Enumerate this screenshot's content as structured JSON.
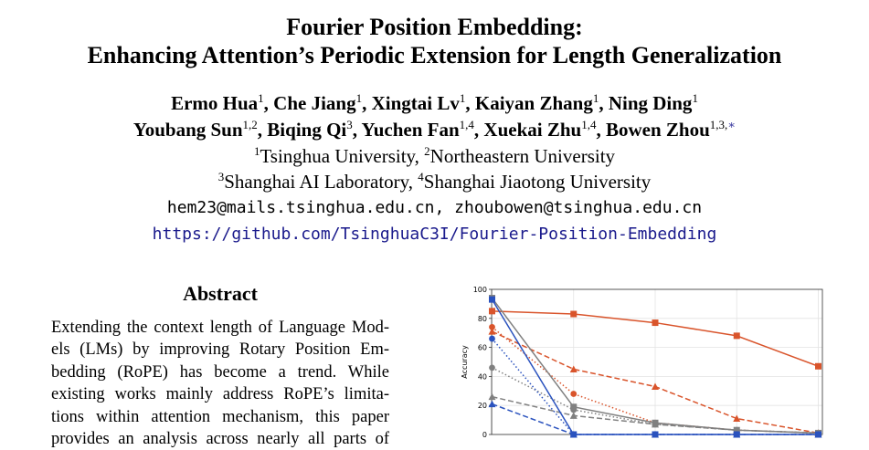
{
  "title": {
    "line1": "Fourier Position Embedding:",
    "line2": "Enhancing Attention’s Periodic Extension for Length Generalization"
  },
  "authors": [
    {
      "name": "Ermo Hua",
      "sup": "1",
      "sep": ", "
    },
    {
      "name": "Che Jiang",
      "sup": "1",
      "sep": ", "
    },
    {
      "name": "Xingtai Lv",
      "sup": "1",
      "sep": ", "
    },
    {
      "name": "Kaiyan Zhang",
      "sup": "1",
      "sep": ", "
    },
    {
      "name": "Ning Ding",
      "sup": "1",
      "sep": ""
    },
    {
      "name": "Youbang Sun",
      "sup": "1,2",
      "sep": ", "
    },
    {
      "name": "Biqing Qi",
      "sup": "3",
      "sep": ", "
    },
    {
      "name": "Yuchen Fan",
      "sup": "1,4",
      "sep": ", "
    },
    {
      "name": "Xuekai Zhu",
      "sup": "1,4",
      "sep": ", "
    },
    {
      "name": "Bowen Zhou",
      "sup": "1,3,",
      "star": "∗",
      "sep": ""
    }
  ],
  "affiliations": {
    "line1": [
      {
        "sup": "1",
        "text": "Tsinghua University, "
      },
      {
        "sup": "2",
        "text": "Northeastern University"
      }
    ],
    "line2": [
      {
        "sup": "3",
        "text": "Shanghai AI Laboratory, "
      },
      {
        "sup": "4",
        "text": "Shanghai Jiaotong University"
      }
    ]
  },
  "emails": "hem23@mails.tsinghua.edu.cn, zhoubowen@tsinghua.edu.cn",
  "github": "https://github.com/TsinghuaC3I/Fourier-Position-Embedding",
  "abstract": {
    "heading": "Abstract",
    "lines": [
      "Extending the context length of Language Mod-",
      "els (LMs) by improving Rotary Position Em-",
      "bedding (RoPE) has become a trend.  While",
      "existing works mainly address RoPE’s limita-",
      "tions within attention mechanism, this paper",
      "provides an analysis across nearly all parts of"
    ]
  },
  "chart_data": {
    "type": "line",
    "ylabel": "Accuracy",
    "ylim": [
      0,
      100
    ],
    "yticks": [
      0,
      20,
      40,
      60,
      80,
      100
    ],
    "x": [
      0,
      1,
      2,
      3,
      4
    ],
    "grid": true,
    "series": [
      {
        "values": [
          85,
          83,
          77,
          68,
          47
        ],
        "color": "#d9542b",
        "dash": "solid",
        "marker": "square"
      },
      {
        "values": [
          71,
          45,
          33,
          11,
          1
        ],
        "color": "#d9542b",
        "dash": "dashed",
        "marker": "triangle"
      },
      {
        "values": [
          74,
          28,
          8,
          3,
          1
        ],
        "color": "#d9542b",
        "dash": "dotted",
        "marker": "circle"
      },
      {
        "values": [
          94,
          19,
          8,
          3,
          1
        ],
        "color": "#808080",
        "dash": "solid",
        "marker": "square"
      },
      {
        "values": [
          26,
          13,
          7,
          3,
          1
        ],
        "color": "#808080",
        "dash": "dashed",
        "marker": "triangle"
      },
      {
        "values": [
          46,
          17,
          7,
          3,
          1
        ],
        "color": "#808080",
        "dash": "dotted",
        "marker": "circle"
      },
      {
        "values": [
          93,
          0,
          0,
          0,
          0
        ],
        "color": "#2a52be",
        "dash": "solid",
        "marker": "square"
      },
      {
        "values": [
          21,
          0,
          0,
          0,
          0
        ],
        "color": "#2a52be",
        "dash": "dashed",
        "marker": "triangle"
      },
      {
        "values": [
          66,
          0,
          0,
          0,
          0
        ],
        "color": "#2a52be",
        "dash": "dotted",
        "marker": "circle"
      }
    ]
  }
}
